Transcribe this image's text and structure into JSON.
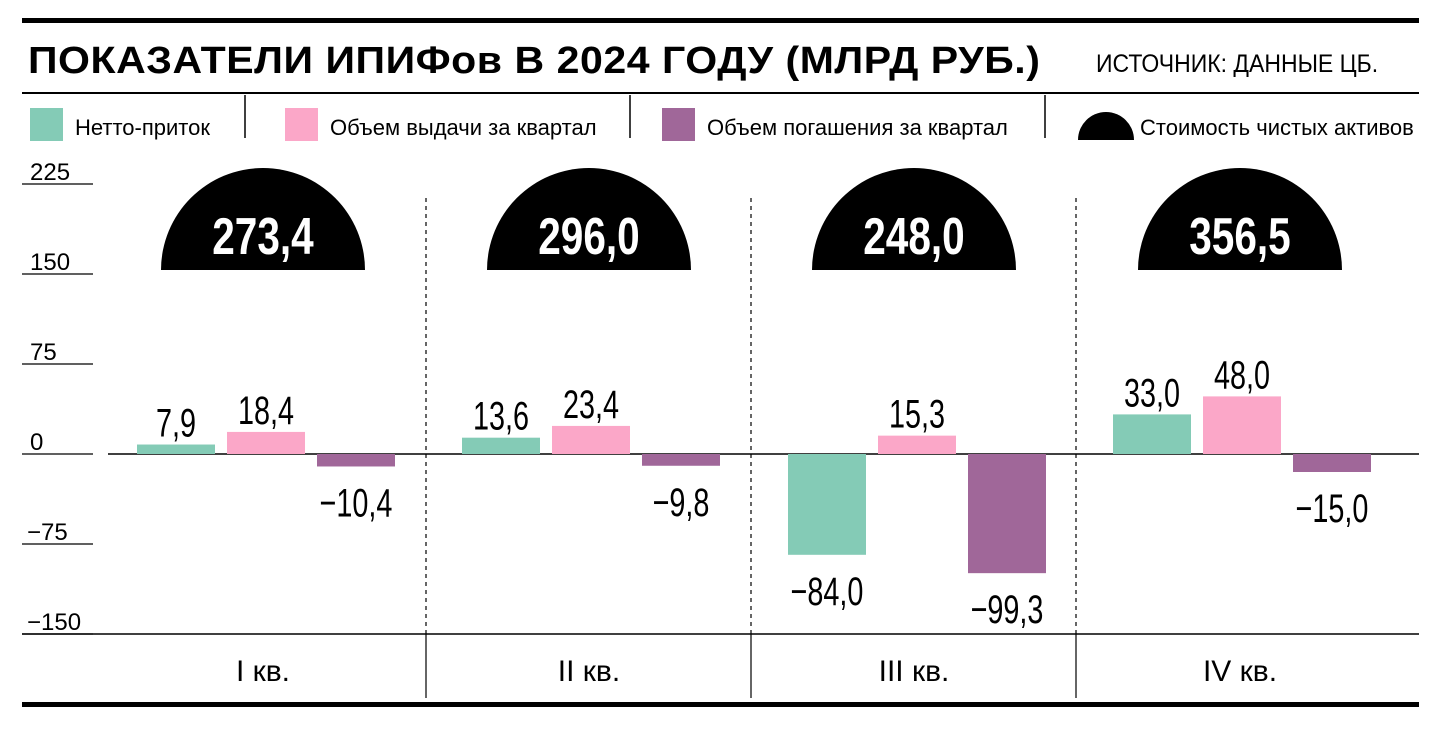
{
  "header": {
    "title": "ПОКАЗАТЕЛИ ИПИФов В 2024 ГОДУ  (МЛРД РУБ.)",
    "source": "ИСТОЧНИК: ДАННЫЕ ЦБ."
  },
  "legend": [
    {
      "label": "Нетто-приток",
      "color": "#84cbb6",
      "shape": "square"
    },
    {
      "label": "Объем выдачи за квартал",
      "color": "#fba7c8",
      "shape": "square"
    },
    {
      "label": "Объем погашения за квартал",
      "color": "#a06799",
      "shape": "square"
    },
    {
      "label": "Стоимость чистых активов",
      "color": "#000000",
      "shape": "semicircle"
    }
  ],
  "chart_data": {
    "type": "bar",
    "title": "ПОКАЗАТЕЛИ ИПИФов В 2024 ГОДУ  (МЛРД РУБ.)",
    "categories": [
      "I кв.",
      "II кв.",
      "III кв.",
      "IV кв."
    ],
    "series": [
      {
        "name": "Нетто-приток",
        "color": "#84cbb6",
        "values": [
          7.9,
          13.6,
          -84.0,
          33.0
        ],
        "labels": [
          "7,9",
          "13,6",
          "−84,0",
          "33,0"
        ]
      },
      {
        "name": "Объем выдачи за квартал",
        "color": "#fba7c8",
        "values": [
          18.4,
          23.4,
          15.3,
          48.0
        ],
        "labels": [
          "18,4",
          "23,4",
          "15,3",
          "48,0"
        ]
      },
      {
        "name": "Объем погашения за квартал",
        "color": "#a06799",
        "values": [
          -10.4,
          -9.8,
          -99.3,
          -15.0
        ],
        "labels": [
          "−10,4",
          "−9,8",
          "−99,3",
          "−15,0"
        ]
      }
    ],
    "net_assets": {
      "name": "Стоимость чистых активов",
      "values": [
        273.4,
        296.0,
        248.0,
        356.5
      ],
      "labels": [
        "273,4",
        "296,0",
        "248,0",
        "356,5"
      ]
    },
    "yticks": [
      225,
      150,
      75,
      0,
      -75,
      -150
    ],
    "ytick_labels": [
      "225",
      "150",
      "75",
      "0",
      "−75",
      "−150"
    ],
    "ylim": [
      -150,
      225
    ],
    "xlabel": "",
    "ylabel": "",
    "grid": false,
    "legend_position": "top"
  }
}
